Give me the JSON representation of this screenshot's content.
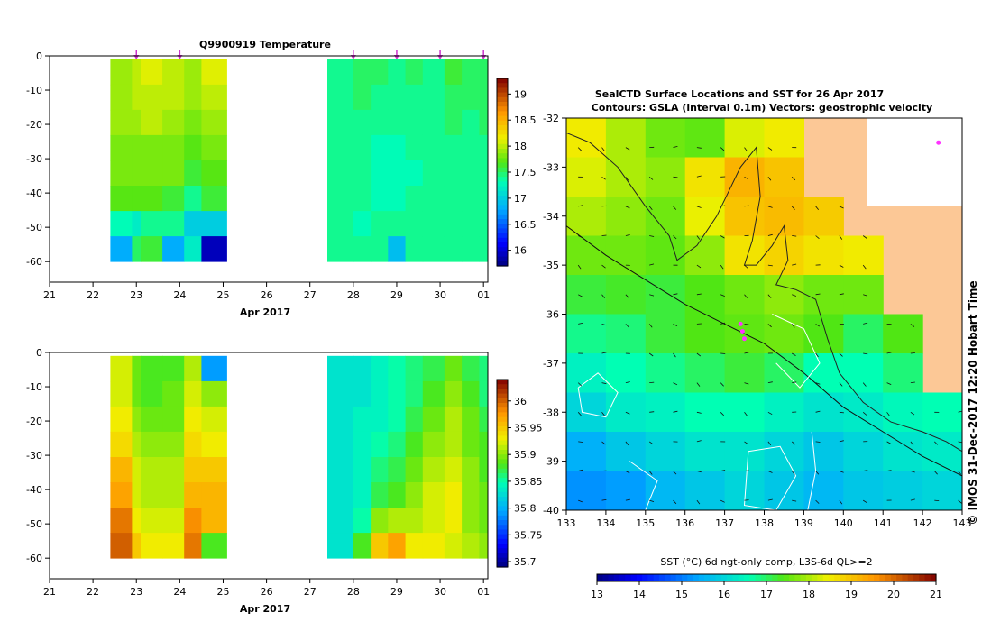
{
  "chart_data": [
    {
      "type": "heatmap",
      "title": "Q9900919  Temperature",
      "variable": "temperature",
      "xlabel": "Apr 2017",
      "x_tick_labels": [
        "21",
        "22",
        "23",
        "24",
        "25",
        "26",
        "27",
        "28",
        "29",
        "30",
        "01"
      ],
      "x_range_days": [
        21,
        31.1
      ],
      "ylim": [
        -66,
        0
      ],
      "y_ticks": [
        0,
        -10,
        -20,
        -30,
        -40,
        -50,
        -60
      ],
      "y_tick_labels": [
        "0",
        "-10",
        "-20",
        "-30",
        "-40",
        "-50",
        "-60"
      ],
      "profile_markers_day": [
        23,
        24,
        28,
        29,
        30,
        31
      ],
      "colorbar": {
        "min": 15.7,
        "max": 19.3,
        "ticks": [
          19,
          18.5,
          18,
          17.5,
          17,
          16.5,
          16
        ],
        "tick_labels": [
          "19",
          "18.5",
          "18",
          "17.5",
          "17",
          "16.5",
          "16"
        ]
      },
      "profiles": [
        {
          "day": 22.4,
          "values": [
            17.9,
            17.9,
            17.9,
            17.8,
            17.8,
            17.7,
            17.3,
            16.8
          ]
        },
        {
          "day": 22.9,
          "values": [
            18.0,
            18.0,
            17.9,
            17.8,
            17.8,
            17.7,
            17.2,
            17.5
          ]
        },
        {
          "day": 23.1,
          "values": [
            18.1,
            18.0,
            18.0,
            17.8,
            17.8,
            17.7,
            17.4,
            17.6
          ]
        },
        {
          "day": 23.6,
          "values": [
            18.0,
            18.0,
            17.9,
            17.8,
            17.8,
            17.6,
            17.4,
            16.8
          ]
        },
        {
          "day": 24.1,
          "values": [
            17.9,
            17.9,
            17.8,
            17.7,
            17.6,
            17.4,
            17.0,
            17.2
          ]
        },
        {
          "day": 24.5,
          "values": [
            18.1,
            18.0,
            17.9,
            17.8,
            17.7,
            17.6,
            17.0,
            15.9
          ]
        },
        {
          "day": 27.4,
          "values": [
            17.4,
            17.4,
            17.4,
            17.4,
            17.4,
            17.4,
            17.4,
            17.4
          ]
        },
        {
          "day": 28.0,
          "values": [
            17.5,
            17.5,
            17.4,
            17.4,
            17.4,
            17.4,
            17.3,
            17.4
          ]
        },
        {
          "day": 28.4,
          "values": [
            17.5,
            17.4,
            17.4,
            17.3,
            17.3,
            17.3,
            17.4,
            17.4
          ]
        },
        {
          "day": 28.8,
          "values": [
            17.4,
            17.4,
            17.4,
            17.3,
            17.3,
            17.3,
            17.4,
            16.9
          ]
        },
        {
          "day": 29.2,
          "values": [
            17.5,
            17.4,
            17.4,
            17.4,
            17.3,
            17.4,
            17.4,
            17.4
          ]
        },
        {
          "day": 29.6,
          "values": [
            17.4,
            17.4,
            17.4,
            17.4,
            17.4,
            17.4,
            17.4,
            17.4
          ]
        },
        {
          "day": 30.1,
          "values": [
            17.6,
            17.5,
            17.5,
            17.4,
            17.4,
            17.4,
            17.4,
            17.4
          ]
        },
        {
          "day": 30.5,
          "values": [
            17.5,
            17.5,
            17.4,
            17.4,
            17.4,
            17.4,
            17.4,
            17.4
          ]
        },
        {
          "day": 30.9,
          "values": [
            17.5,
            17.5,
            17.5,
            17.4,
            17.4,
            17.4,
            17.4,
            17.4
          ]
        }
      ]
    },
    {
      "type": "heatmap",
      "title": "",
      "variable": "salinity",
      "xlabel": "Apr 2017",
      "x_tick_labels": [
        "21",
        "22",
        "23",
        "24",
        "25",
        "26",
        "27",
        "28",
        "29",
        "30",
        "01"
      ],
      "x_range_days": [
        21,
        31.1
      ],
      "ylim": [
        -66,
        0
      ],
      "y_ticks": [
        0,
        -10,
        -20,
        -30,
        -40,
        -50,
        -60
      ],
      "y_tick_labels": [
        "0",
        "-10",
        "-20",
        "-30",
        "-40",
        "-50",
        "-60"
      ],
      "colorbar": {
        "min": 35.69,
        "max": 36.04,
        "ticks": [
          36,
          35.95,
          35.9,
          35.85,
          35.8,
          35.75,
          35.7
        ],
        "tick_labels": [
          "36",
          "35.95",
          "35.9",
          "35.85",
          "35.8",
          "35.75",
          "35.7"
        ]
      },
      "profiles": [
        {
          "day": 22.4,
          "values": [
            35.92,
            35.92,
            35.93,
            35.94,
            35.96,
            35.97,
            35.99,
            36.0
          ]
        },
        {
          "day": 22.9,
          "values": [
            35.89,
            35.89,
            35.9,
            35.91,
            35.92,
            35.92,
            35.93,
            35.95
          ]
        },
        {
          "day": 23.1,
          "values": [
            35.88,
            35.88,
            35.89,
            35.9,
            35.91,
            35.91,
            35.92,
            35.93
          ]
        },
        {
          "day": 23.6,
          "values": [
            35.88,
            35.89,
            35.89,
            35.9,
            35.91,
            35.91,
            35.92,
            35.93
          ]
        },
        {
          "day": 24.1,
          "values": [
            35.91,
            35.92,
            35.93,
            35.94,
            35.95,
            35.96,
            35.98,
            35.99
          ]
        },
        {
          "day": 24.5,
          "values": [
            35.79,
            35.9,
            35.92,
            35.93,
            35.95,
            35.96,
            35.96,
            35.88
          ]
        },
        {
          "day": 27.4,
          "values": [
            35.83,
            35.83,
            35.83,
            35.83,
            35.83,
            35.83,
            35.83,
            35.83
          ]
        },
        {
          "day": 28.0,
          "values": [
            35.83,
            35.83,
            35.84,
            35.84,
            35.84,
            35.84,
            35.85,
            35.88
          ]
        },
        {
          "day": 28.4,
          "values": [
            35.84,
            35.84,
            35.84,
            35.85,
            35.86,
            35.87,
            35.9,
            35.95
          ]
        },
        {
          "day": 28.8,
          "values": [
            35.85,
            35.85,
            35.85,
            35.86,
            35.87,
            35.88,
            35.91,
            35.97
          ]
        },
        {
          "day": 29.2,
          "values": [
            35.86,
            35.86,
            35.87,
            35.88,
            35.89,
            35.9,
            35.91,
            35.93
          ]
        },
        {
          "day": 29.6,
          "values": [
            35.87,
            35.88,
            35.89,
            35.9,
            35.91,
            35.92,
            35.92,
            35.93
          ]
        },
        {
          "day": 30.1,
          "values": [
            35.89,
            35.9,
            35.91,
            35.91,
            35.92,
            35.93,
            35.93,
            35.92
          ]
        },
        {
          "day": 30.5,
          "values": [
            35.87,
            35.88,
            35.89,
            35.89,
            35.9,
            35.9,
            35.9,
            35.91
          ]
        },
        {
          "day": 30.9,
          "values": [
            35.86,
            35.86,
            35.87,
            35.88,
            35.88,
            35.89,
            35.89,
            35.9
          ]
        }
      ]
    },
    {
      "type": "heatmap",
      "title": "SealCTD Surface Locations and SST for 26 Apr 2017",
      "subtitle": "Contours: GSLA (interval 0.1m) Vectors: geostrophic velocity",
      "variable": "sst_map",
      "x_range": [
        133,
        143
      ],
      "y_range": [
        -40,
        -32
      ],
      "x_ticks": [
        133,
        134,
        135,
        136,
        137,
        138,
        139,
        140,
        141,
        142,
        143
      ],
      "x_tick_labels": [
        "133",
        "134",
        "135",
        "136",
        "137",
        "138",
        "139",
        "140",
        "141",
        "142",
        "143"
      ],
      "y_ticks": [
        -32,
        -33,
        -34,
        -35,
        -36,
        -37,
        -38,
        -39,
        -40
      ],
      "y_tick_labels": [
        "-32",
        "-33",
        "-34",
        "-35",
        "-36",
        "-37",
        "-38",
        "-39",
        "-40"
      ],
      "colorbar": {
        "min": 13,
        "max": 21,
        "label": "SST (°C) 6d ngt-only comp, L3S-6d QL>=2",
        "ticks": [
          13,
          14,
          15,
          16,
          17,
          18,
          19,
          20,
          21
        ],
        "tick_labels": [
          "13",
          "14",
          "15",
          "16",
          "17",
          "18",
          "19",
          "20",
          "21"
        ]
      },
      "sst_grid_rows_north_to_south": [
        [
          18.5,
          18.0,
          17.6,
          17.5,
          18.3,
          18.5,
          null,
          null,
          null,
          null
        ],
        [
          18.3,
          18.0,
          17.8,
          18.6,
          19.2,
          19.0,
          null,
          null,
          null,
          null
        ],
        [
          18.0,
          17.8,
          17.6,
          18.4,
          19.0,
          19.1,
          18.9,
          null,
          null,
          null
        ],
        [
          17.6,
          17.6,
          17.5,
          17.8,
          18.6,
          18.8,
          18.6,
          18.5,
          null,
          null
        ],
        [
          17.2,
          17.3,
          17.2,
          17.4,
          17.6,
          17.8,
          17.6,
          17.6,
          null,
          null
        ],
        [
          16.8,
          16.9,
          17.2,
          17.4,
          17.5,
          17.6,
          17.4,
          17.0,
          17.4,
          null
        ],
        [
          16.4,
          16.6,
          16.8,
          17.0,
          17.2,
          17.0,
          16.6,
          16.6,
          16.9,
          null
        ],
        [
          16.0,
          16.3,
          16.4,
          16.6,
          16.6,
          16.4,
          16.2,
          16.3,
          16.5,
          16.6
        ],
        [
          15.5,
          15.8,
          16.0,
          16.2,
          16.2,
          16.0,
          15.8,
          16.0,
          16.2,
          16.3
        ],
        [
          15.2,
          15.3,
          15.6,
          15.8,
          16.0,
          15.8,
          15.6,
          15.8,
          15.9,
          16.0
        ]
      ],
      "seal_locations": [
        [
          137.4,
          -36.2
        ],
        [
          137.5,
          -36.5
        ],
        [
          137.45,
          -36.35
        ],
        [
          142.4,
          -32.5
        ]
      ]
    }
  ],
  "side_label": "© IMOS 31-Dec-2017 12:20 Hobart Time"
}
